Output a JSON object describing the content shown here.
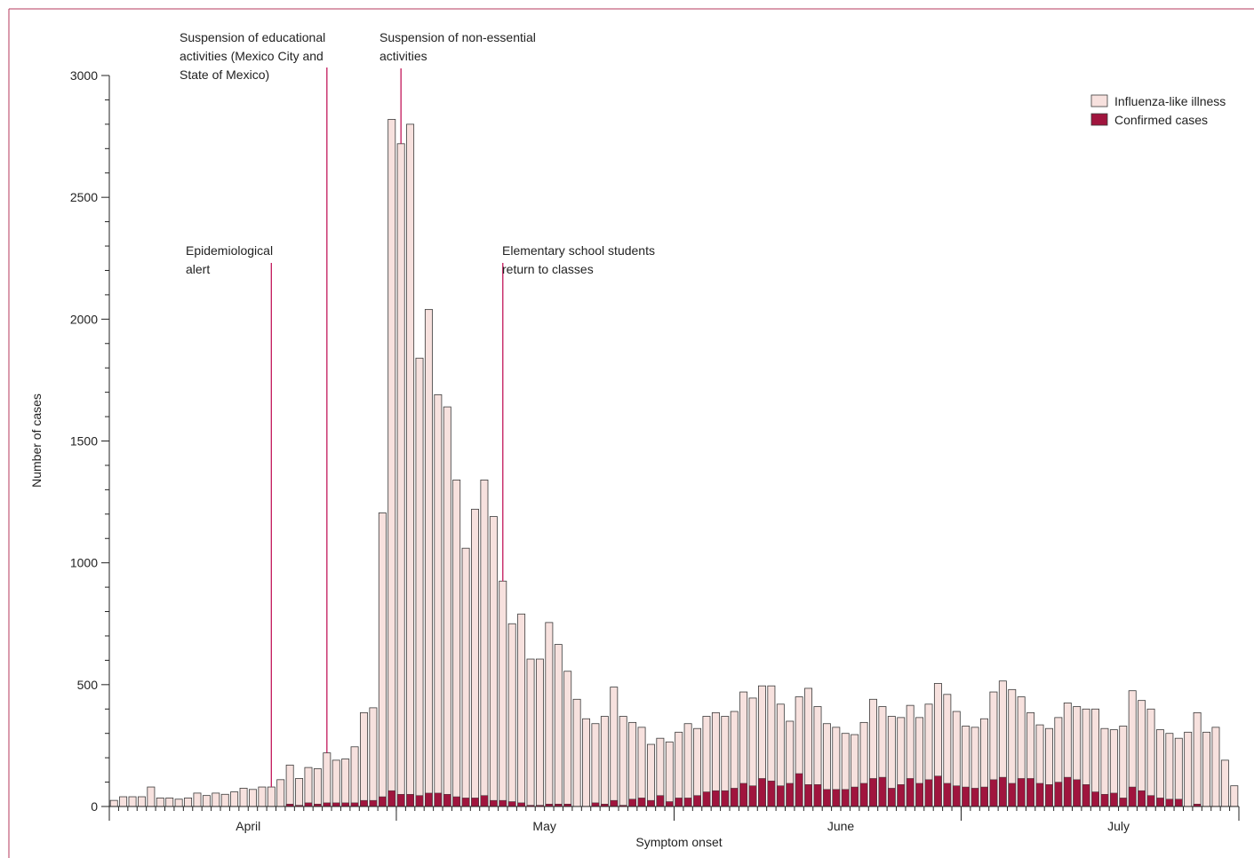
{
  "chart_data": {
    "type": "bar",
    "stacking": "overlay",
    "title": "",
    "xlabel": "Symptom onset",
    "ylabel": "Number of cases",
    "ylim": [
      0,
      3000
    ],
    "yticks": [
      0,
      500,
      1000,
      1500,
      2000,
      2500,
      3000
    ],
    "ytick_labels": [
      "0",
      "500",
      "1000",
      "1500",
      "2000",
      "2500",
      "3000"
    ],
    "month_labels": [
      {
        "label": "April",
        "center_day": 15
      },
      {
        "label": "May",
        "center_day": 47
      },
      {
        "label": "June",
        "center_day": 79
      },
      {
        "label": "July",
        "center_day": 109
      }
    ],
    "month_boundaries_day": [
      31,
      61,
      92
    ],
    "start_date": "March 16",
    "series": [
      {
        "name": "Influenza-like illness",
        "color": "#f7e1de",
        "values": [
          25,
          40,
          40,
          40,
          80,
          35,
          35,
          30,
          35,
          55,
          45,
          55,
          50,
          60,
          75,
          70,
          80,
          80,
          110,
          170,
          115,
          160,
          155,
          220,
          190,
          195,
          245,
          385,
          405,
          1205,
          2820,
          2720,
          2800,
          1840,
          2040,
          1690,
          1640,
          1340,
          1060,
          1220,
          1340,
          1190,
          925,
          750,
          790,
          605,
          605,
          755,
          665,
          555,
          440,
          360,
          340,
          370,
          490,
          370,
          345,
          325,
          255,
          280,
          265,
          305,
          340,
          320,
          370,
          385,
          370,
          390,
          470,
          445,
          495,
          495,
          420,
          350,
          450,
          485,
          410,
          340,
          325,
          300,
          295,
          345,
          440,
          410,
          370,
          365,
          415,
          365,
          420,
          505,
          460,
          390,
          330,
          325,
          360,
          470,
          515,
          480,
          450,
          385,
          335,
          320,
          365,
          425,
          410,
          400,
          400,
          320,
          315,
          330,
          475,
          435,
          400,
          315,
          300,
          280,
          305,
          385,
          305,
          325,
          190,
          85
        ]
      },
      {
        "name": "Confirmed cases",
        "color": "#a0153e",
        "values": [
          0,
          0,
          0,
          0,
          0,
          0,
          0,
          0,
          0,
          0,
          0,
          0,
          0,
          0,
          0,
          0,
          0,
          0,
          0,
          10,
          5,
          15,
          10,
          15,
          15,
          15,
          15,
          25,
          25,
          40,
          65,
          50,
          50,
          45,
          55,
          55,
          50,
          40,
          35,
          35,
          45,
          25,
          25,
          20,
          15,
          5,
          5,
          10,
          10,
          10,
          0,
          0,
          15,
          10,
          25,
          5,
          30,
          35,
          25,
          45,
          20,
          35,
          35,
          45,
          60,
          65,
          65,
          75,
          95,
          85,
          115,
          105,
          85,
          95,
          135,
          90,
          90,
          70,
          70,
          70,
          80,
          95,
          115,
          120,
          75,
          90,
          115,
          95,
          110,
          125,
          95,
          85,
          80,
          75,
          80,
          110,
          120,
          95,
          115,
          115,
          95,
          90,
          100,
          120,
          110,
          90,
          60,
          50,
          55,
          35,
          80,
          65,
          45,
          35,
          30,
          30,
          0,
          10,
          0,
          0,
          0,
          0
        ]
      }
    ],
    "annotations": [
      {
        "day": 17,
        "lines": [
          "Epidemiological",
          "alert"
        ]
      },
      {
        "day": 23,
        "lines": [
          "Suspension of educational",
          "activities (Mexico City and",
          "State of Mexico)"
        ]
      },
      {
        "day": 31,
        "lines": [
          "Suspension of non-essential",
          "activities"
        ]
      },
      {
        "day": 42,
        "lines": [
          "Elementary school students",
          "return to classes"
        ]
      }
    ],
    "legend_placement": "top-right",
    "grid": false,
    "colors": {
      "frame": "#b5395e",
      "annotation_line": "#c2185b",
      "axis": "#222222",
      "bar_outline": "#3a3a3a"
    }
  }
}
